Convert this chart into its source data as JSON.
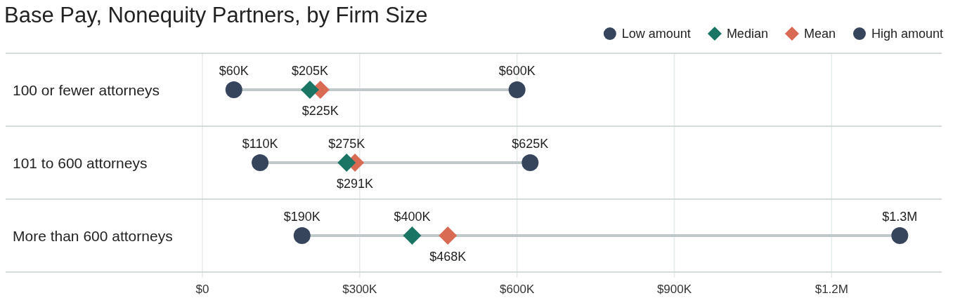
{
  "chart_data": {
    "type": "scatter",
    "title": "Base Pay, Nonequity Partners, by Firm Size",
    "orientation": "horizontal",
    "categories": [
      "100 or fewer attorneys",
      "101 to 600 attorneys",
      "More than 600 attorneys"
    ],
    "series": [
      {
        "name": "Low amount",
        "color": "#36455c",
        "marker": "circle",
        "values": [
          60000,
          110000,
          190000
        ],
        "value_labels": [
          "$60K",
          "$110K",
          "$190K"
        ]
      },
      {
        "name": "Median",
        "color": "#1b7564",
        "marker": "diamond",
        "values": [
          205000,
          275000,
          400000
        ],
        "value_labels": [
          "$205K",
          "$275K",
          "$400K"
        ]
      },
      {
        "name": "Mean",
        "color": "#d96b54",
        "marker": "diamond",
        "values": [
          225000,
          291000,
          468000
        ],
        "value_labels": [
          "$225K",
          "$291K",
          "$468K"
        ]
      },
      {
        "name": "High amount",
        "color": "#36455c",
        "marker": "circle",
        "values": [
          600000,
          625000,
          1330000
        ],
        "value_labels": [
          "$600K",
          "$625K",
          "$1.3M"
        ]
      }
    ],
    "xlim": [
      0,
      1410000
    ],
    "xticks": [
      {
        "value": 0,
        "label": "$0"
      },
      {
        "value": 300000,
        "label": "$300K"
      },
      {
        "value": 600000,
        "label": "$600K"
      },
      {
        "value": 900000,
        "label": "$900K"
      },
      {
        "value": 1200000,
        "label": "$1.2M"
      }
    ],
    "grid": true,
    "legend": "top right"
  }
}
